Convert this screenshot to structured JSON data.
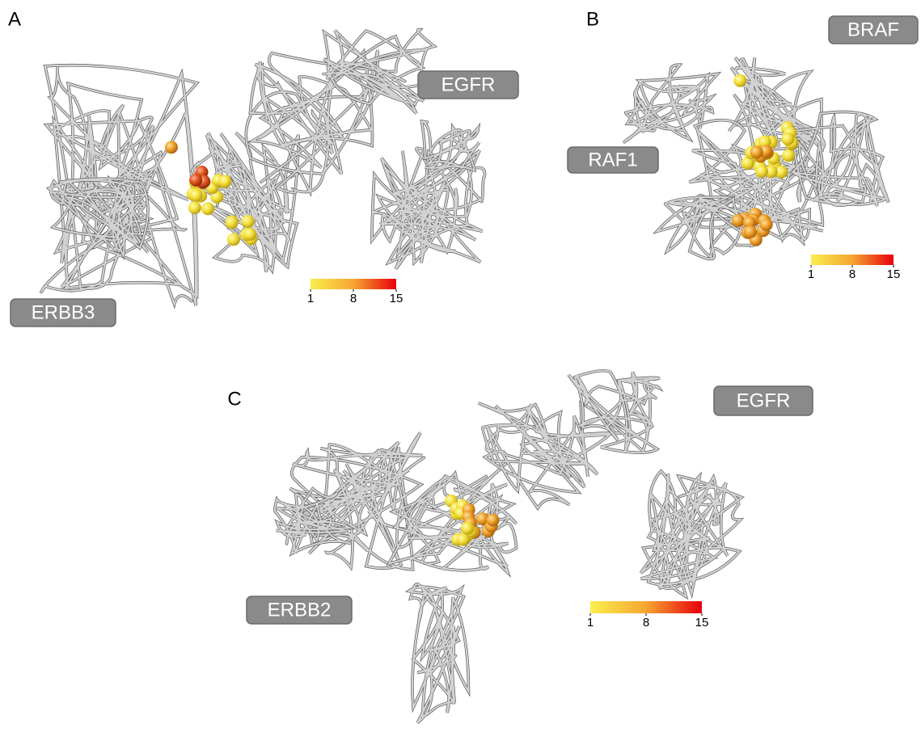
{
  "panels": [
    {
      "letter": "A",
      "proteins": [
        "EGFR",
        "ERBB3"
      ],
      "colorbar": {
        "lim": [
          1,
          15
        ],
        "ticks": [
          1,
          8,
          15
        ],
        "colors": [
          "#f9ee4e",
          "#f5a631",
          "#e8000b"
        ]
      }
    },
    {
      "letter": "B",
      "proteins": [
        "BRAF",
        "RAF1"
      ],
      "colorbar": {
        "lim": [
          1,
          15
        ],
        "ticks": [
          1,
          8,
          15
        ],
        "colors": [
          "#f9ee4e",
          "#f5a631",
          "#e8000b"
        ]
      }
    },
    {
      "letter": "C",
      "proteins": [
        "EGFR",
        "ERBB2"
      ],
      "colorbar": {
        "lim": [
          1,
          15
        ],
        "ticks": [
          1,
          8,
          15
        ],
        "colors": [
          "#f9ee4e",
          "#f5a631",
          "#e8000b"
        ]
      }
    }
  ]
}
